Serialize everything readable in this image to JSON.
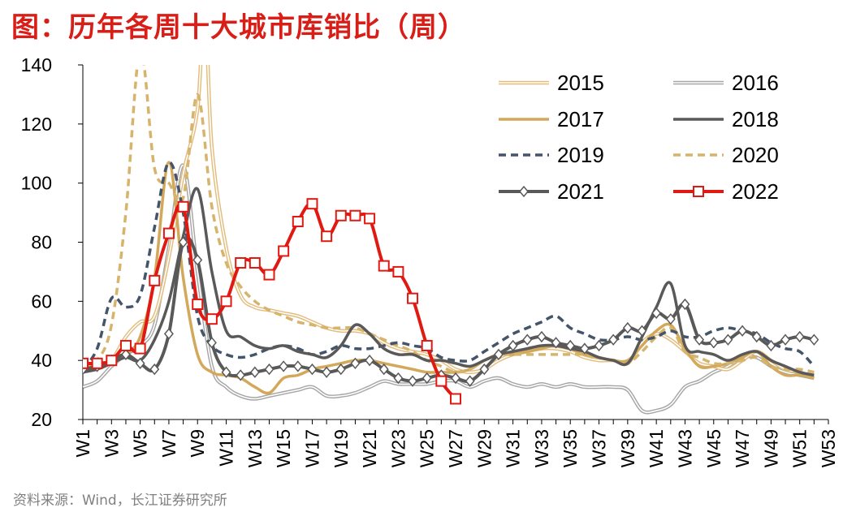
{
  "title": "图：历年各周十大城市库销比（周）",
  "source": "资料来源：Wind，长江证券研究所",
  "chart_data": {
    "type": "line",
    "title": "历年各周十大城市库销比（周）",
    "xlabel": "",
    "ylabel": "",
    "ylim": [
      20,
      140
    ],
    "yticks": [
      20,
      40,
      60,
      80,
      100,
      120,
      140
    ],
    "xtick_labels": [
      "W1",
      "W3",
      "W5",
      "W7",
      "W9",
      "W11",
      "W13",
      "W15",
      "W17",
      "W19",
      "W21",
      "W23",
      "W25",
      "W27",
      "W29",
      "W31",
      "W33",
      "W35",
      "W37",
      "W39",
      "W41",
      "W43",
      "W45",
      "W47",
      "W49",
      "W51",
      "W53"
    ],
    "grid": false,
    "legend": "top-right",
    "series": [
      {
        "name": "2015",
        "style": "double",
        "color": "#e2bd7d",
        "weeks": [
          1,
          2,
          3,
          4,
          5,
          6,
          7,
          8,
          9,
          9.5,
          10,
          11,
          12,
          13,
          14,
          15,
          16,
          17,
          18,
          19,
          20,
          21,
          22,
          23,
          24,
          25,
          26,
          27,
          28,
          29,
          30,
          31,
          32,
          33,
          34,
          35,
          36,
          37,
          38,
          39,
          40,
          41,
          42,
          43,
          44,
          45,
          46,
          47,
          48,
          49,
          50,
          51,
          52
        ],
        "values": [
          37,
          38,
          40,
          48,
          53,
          55,
          75,
          103,
          125,
          160,
          112,
          78,
          62,
          58,
          57,
          56,
          55,
          53,
          51,
          50,
          50,
          49,
          46,
          44,
          43,
          42,
          40,
          37,
          36,
          37,
          40,
          42,
          43,
          44,
          44,
          43,
          41,
          40,
          40,
          39,
          46,
          49,
          47,
          43,
          39,
          38,
          37,
          40,
          43,
          40,
          37,
          36,
          34
        ]
      },
      {
        "name": "2016",
        "style": "double",
        "color": "#a6a6a6",
        "weeks": [
          1,
          2,
          3,
          4,
          5,
          6,
          7,
          8,
          9,
          10,
          11,
          12,
          13,
          14,
          15,
          16,
          17,
          18,
          19,
          20,
          21,
          22,
          23,
          24,
          25,
          26,
          27,
          28,
          29,
          30,
          31,
          32,
          33,
          34,
          35,
          36,
          37,
          38,
          39,
          40,
          41,
          42,
          43,
          44,
          45,
          46,
          47,
          48,
          49,
          50,
          51,
          52
        ],
        "values": [
          31,
          33,
          38,
          42,
          45,
          52,
          78,
          106,
          70,
          38,
          31,
          28,
          27,
          28,
          29,
          30,
          31,
          28,
          28,
          29,
          31,
          33,
          32,
          32,
          32,
          33,
          33,
          31,
          33,
          34,
          32,
          31,
          32,
          31,
          32,
          31,
          31,
          31,
          30,
          23,
          23,
          25,
          31,
          33,
          36,
          38,
          41,
          41,
          38,
          36,
          35,
          34
        ]
      },
      {
        "name": "2017",
        "style": "solid",
        "color": "#d4a85a",
        "weeks": [
          1,
          2,
          3,
          4,
          5,
          6,
          7,
          8,
          9,
          10,
          11,
          12,
          13,
          14,
          15,
          16,
          17,
          18,
          19,
          20,
          21,
          22,
          23,
          24,
          25,
          26,
          27,
          28,
          29,
          30,
          31,
          32,
          33,
          34,
          35,
          36,
          37,
          38,
          39,
          40,
          41,
          42,
          43,
          44,
          45,
          46,
          47,
          48,
          49,
          50,
          51,
          52
        ],
        "values": [
          38,
          38,
          39,
          42,
          48,
          68,
          107,
          68,
          42,
          36,
          35,
          34,
          31,
          29,
          34,
          35,
          37,
          38,
          39,
          40,
          40,
          39,
          38,
          37,
          36,
          36,
          36,
          37,
          40,
          42,
          42,
          43,
          44,
          45,
          44,
          42,
          41,
          40,
          40,
          45,
          50,
          52,
          44,
          38,
          38,
          39,
          41,
          43,
          38,
          35,
          35,
          34
        ]
      },
      {
        "name": "2018",
        "style": "solid",
        "color": "#595959",
        "weeks": [
          1,
          2,
          3,
          4,
          5,
          6,
          7,
          8,
          9,
          10,
          11,
          12,
          13,
          14,
          15,
          16,
          17,
          18,
          19,
          20,
          21,
          22,
          23,
          24,
          25,
          26,
          27,
          28,
          29,
          30,
          31,
          32,
          33,
          34,
          35,
          36,
          37,
          38,
          39,
          40,
          41,
          42,
          43,
          44,
          45,
          46,
          47,
          48,
          49,
          50,
          51,
          52
        ],
        "values": [
          36,
          37,
          39,
          41,
          40,
          47,
          60,
          82,
          98,
          70,
          50,
          48,
          45,
          44,
          45,
          43,
          42,
          41,
          45,
          52,
          49,
          44,
          42,
          42,
          40,
          40,
          39,
          38,
          40,
          42,
          43,
          44,
          45,
          45,
          44,
          43,
          41,
          40,
          39,
          48,
          58,
          66,
          45,
          43,
          42,
          40,
          42,
          43,
          40,
          38,
          36,
          35
        ]
      },
      {
        "name": "2019",
        "style": "dashed",
        "color": "#44546a",
        "weeks": [
          1,
          2,
          3,
          4,
          5,
          6,
          7,
          8,
          9,
          10,
          11,
          12,
          13,
          14,
          15,
          16,
          17,
          18,
          19,
          20,
          21,
          22,
          23,
          24,
          25,
          26,
          27,
          28,
          29,
          30,
          31,
          32,
          33,
          34,
          35,
          36,
          37,
          38,
          39,
          40,
          41,
          42,
          43,
          44,
          45,
          46,
          47,
          48,
          49,
          50,
          51,
          52
        ],
        "values": [
          37,
          44,
          61,
          58,
          62,
          85,
          107,
          90,
          55,
          45,
          42,
          41,
          42,
          44,
          45,
          44,
          42,
          43,
          45,
          44,
          44,
          45,
          46,
          45,
          44,
          41,
          40,
          40,
          43,
          46,
          49,
          51,
          53,
          55,
          51,
          49,
          47,
          47,
          48,
          47,
          48,
          50,
          48,
          48,
          50,
          51,
          50,
          49,
          46,
          44,
          43,
          38
        ]
      },
      {
        "name": "2020",
        "style": "dashed",
        "color": "#d6b46c",
        "weeks": [
          1,
          2,
          3,
          4,
          5,
          6,
          7,
          8,
          9,
          10,
          11,
          12,
          13,
          14,
          15,
          16,
          17,
          18,
          19,
          20,
          21,
          22,
          23,
          24,
          25,
          26,
          27,
          28,
          29,
          30,
          31,
          32,
          33,
          34,
          35,
          36,
          37,
          38,
          39,
          40,
          41,
          42,
          43,
          44,
          45,
          46,
          47,
          48,
          49,
          50,
          51,
          52
        ],
        "values": [
          38,
          40,
          52,
          90,
          145,
          105,
          100,
          95,
          130,
          92,
          73,
          65,
          60,
          57,
          55,
          53,
          52,
          51,
          51,
          51,
          49,
          47,
          45,
          43,
          40,
          38,
          36,
          37,
          40,
          42,
          42,
          42,
          42,
          42,
          42,
          42,
          41,
          40,
          39,
          43,
          48,
          51,
          43,
          41,
          39,
          39,
          40,
          41,
          38,
          37,
          37,
          36
        ]
      },
      {
        "name": "2021",
        "style": "markers",
        "color": "#595959",
        "weeks": [
          1,
          2,
          3,
          4,
          5,
          6,
          7,
          8,
          9,
          10,
          11,
          12,
          13,
          14,
          15,
          16,
          17,
          18,
          19,
          20,
          21,
          22,
          23,
          24,
          25,
          26,
          27,
          28,
          29,
          30,
          31,
          32,
          33,
          34,
          35,
          36,
          37,
          38,
          39,
          40,
          41,
          42,
          43,
          44,
          45,
          46,
          47,
          48,
          49,
          50,
          51,
          52
        ],
        "values": [
          37,
          38,
          40,
          42,
          39,
          37,
          49,
          80,
          74,
          46,
          36,
          35,
          36,
          37,
          38,
          38,
          37,
          36,
          37,
          39,
          40,
          37,
          34,
          33,
          34,
          35,
          34,
          33,
          37,
          42,
          45,
          47,
          48,
          46,
          45,
          44,
          45,
          47,
          51,
          50,
          56,
          54,
          59,
          47,
          46,
          47,
          50,
          48,
          45,
          47,
          48,
          47
        ]
      },
      {
        "name": "2022",
        "style": "markers",
        "color": "#e01a12",
        "weeks": [
          1,
          2,
          3,
          4,
          5,
          6,
          7,
          8,
          9,
          10,
          11,
          12,
          13,
          14,
          15,
          16,
          17,
          18,
          19,
          20,
          21,
          22,
          23,
          24,
          25,
          26,
          27
        ],
        "values": [
          39,
          39,
          40,
          45,
          44,
          67,
          83,
          92,
          59,
          54,
          60,
          73,
          73,
          69,
          77,
          87,
          93,
          82,
          89,
          89,
          88,
          72,
          70,
          61,
          45,
          33,
          27
        ]
      }
    ]
  }
}
